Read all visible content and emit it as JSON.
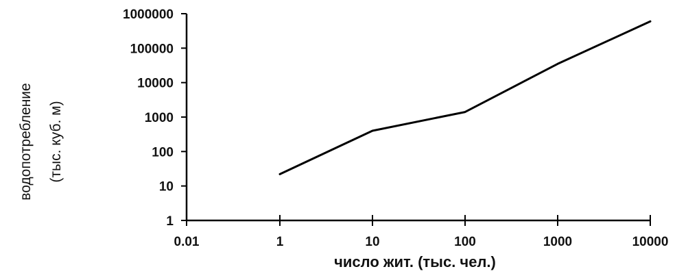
{
  "chart_data": {
    "type": "line",
    "x_scale": "log",
    "y_scale": "log",
    "xlabel": "число жит. (тыс. чел.)",
    "ylabel_lines": [
      "водопотребление",
      "(тыс. куб. м)"
    ],
    "x_ticks": [
      "0.01",
      "1",
      "10",
      "100",
      "1000",
      "10000"
    ],
    "y_ticks": [
      "1",
      "10",
      "100",
      "1000",
      "10000",
      "100000",
      "1000000"
    ],
    "xlim": [
      0.01,
      10000
    ],
    "ylim": [
      1,
      1000000
    ],
    "grid": false,
    "legend": "none",
    "line_color": "#000000",
    "series": [
      {
        "x": [
          1,
          10,
          100,
          1000,
          10000
        ],
        "y": [
          22,
          400,
          1400,
          35000,
          600000
        ]
      }
    ]
  }
}
